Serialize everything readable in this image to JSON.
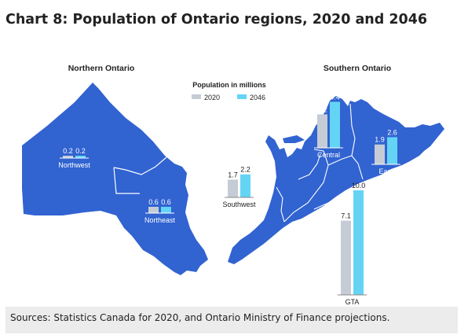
{
  "title": "Chart 8: Population of Ontario regions, 2020 and 2046",
  "map_labels": {
    "north": "Northern Ontario",
    "south": "Southern Ontario"
  },
  "legend": {
    "title": "Population in millions",
    "items": [
      "2020",
      "2046"
    ]
  },
  "colors": {
    "map": "#3163d1",
    "border": "#ffffff",
    "bar_2020": "#c6ccd6",
    "bar_2046": "#64d4f5"
  },
  "chart_data": {
    "type": "bar",
    "ylabel": "Population in millions",
    "categories": [
      "Northwest",
      "Northeast",
      "Southwest",
      "Central",
      "East",
      "GTA"
    ],
    "series": [
      {
        "name": "2020",
        "values": [
          0.2,
          0.6,
          1.7,
          3.2,
          1.9,
          7.1
        ]
      },
      {
        "name": "2046",
        "values": [
          0.2,
          0.6,
          2.2,
          4.4,
          2.6,
          10.0
        ]
      }
    ],
    "value_labels": [
      [
        "0.2",
        "0.6",
        "1.7",
        "3.2",
        "1.9",
        "7.1"
      ],
      [
        "0.2",
        "0.6",
        "2.2",
        "4.4",
        "2.6",
        "10.0"
      ]
    ]
  },
  "source": "Sources: Statistics Canada for 2020, and Ontario Ministry of Finance projections."
}
